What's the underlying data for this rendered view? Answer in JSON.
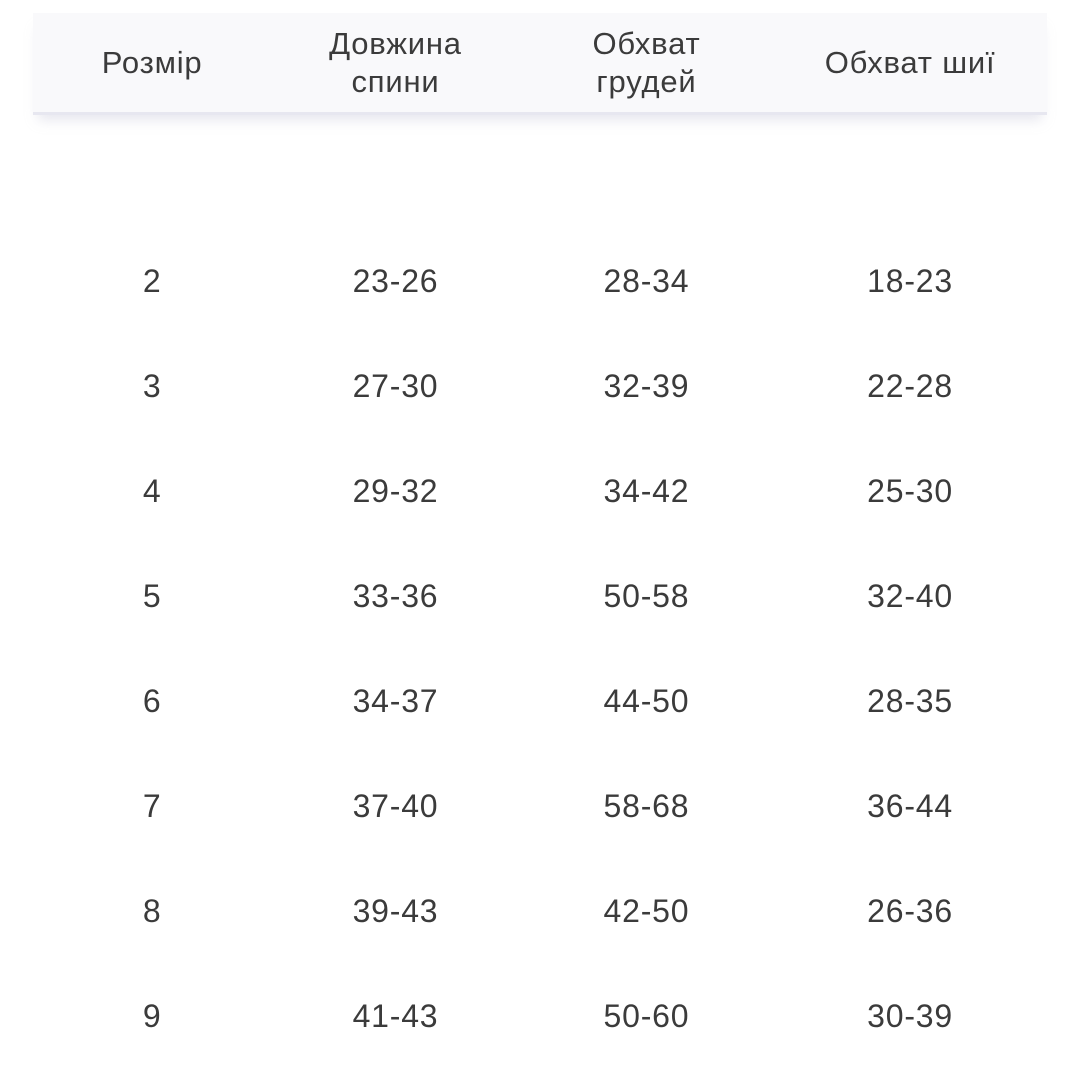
{
  "colors": {
    "background": "#ffffff",
    "header_bg": "#f9f9fb",
    "header_border": "#e7e7f0",
    "text": "#3b3b3b"
  },
  "table": {
    "columns": [
      {
        "label": "Розмір"
      },
      {
        "label": "Довжина спини"
      },
      {
        "label": "Обхват грудей"
      },
      {
        "label": "Обхват шиї"
      }
    ],
    "rows": [
      [
        "2",
        "23-26",
        "28-34",
        "18-23"
      ],
      [
        "3",
        "27-30",
        "32-39",
        "22-28"
      ],
      [
        "4",
        "29-32",
        "34-42",
        "25-30"
      ],
      [
        "5",
        "33-36",
        "50-58",
        "32-40"
      ],
      [
        "6",
        "34-37",
        "44-50",
        "28-35"
      ],
      [
        "7",
        "37-40",
        "58-68",
        "36-44"
      ],
      [
        "8",
        "39-43",
        "42-50",
        "26-36"
      ],
      [
        "9",
        "41-43",
        "50-60",
        "30-39"
      ]
    ]
  }
}
